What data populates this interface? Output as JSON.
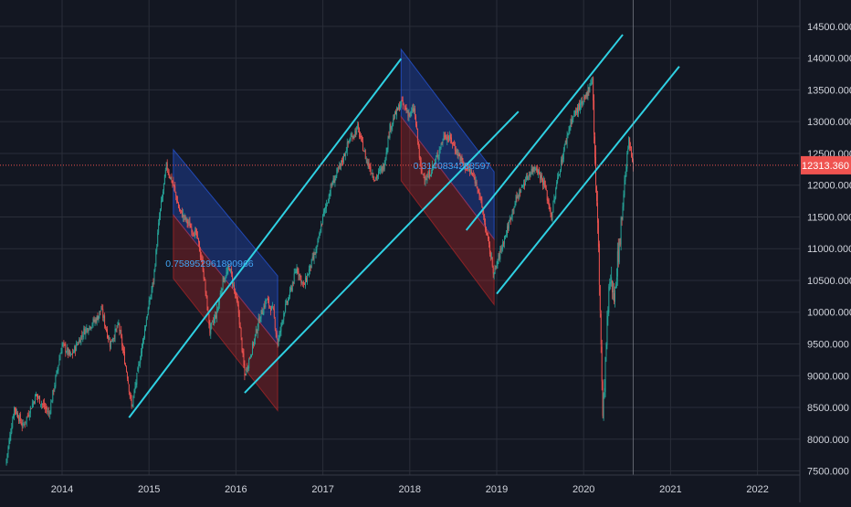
{
  "chart_data": {
    "type": "candlestick",
    "title": "",
    "xlabel": "",
    "ylabel": "",
    "ylim": [
      7450,
      14750
    ],
    "xlim": [
      2013.35,
      2022.6
    ],
    "y_ticks": [
      {
        "value": 7500,
        "label": "7500.000"
      },
      {
        "value": 8000,
        "label": "8000.000"
      },
      {
        "value": 8500,
        "label": "8500.000"
      },
      {
        "value": 9000,
        "label": "9000.000"
      },
      {
        "value": 9500,
        "label": "9500.000"
      },
      {
        "value": 10000,
        "label": "10000.000"
      },
      {
        "value": 10500,
        "label": "10500.000"
      },
      {
        "value": 11000,
        "label": "11000.000"
      },
      {
        "value": 11500,
        "label": "11500.000"
      },
      {
        "value": 12000,
        "label": "12000.000"
      },
      {
        "value": 12500,
        "label": "12500.000"
      },
      {
        "value": 13000,
        "label": "13000.000"
      },
      {
        "value": 13500,
        "label": "13500.000"
      },
      {
        "value": 14000,
        "label": "14000.000"
      },
      {
        "value": 14500,
        "label": "14500.000"
      }
    ],
    "x_ticks": [
      {
        "value": 2014,
        "label": "2014"
      },
      {
        "value": 2015,
        "label": "2015"
      },
      {
        "value": 2016,
        "label": "2016"
      },
      {
        "value": 2017,
        "label": "2017"
      },
      {
        "value": 2018,
        "label": "2018"
      },
      {
        "value": 2019,
        "label": "2019"
      },
      {
        "value": 2020,
        "label": "2020"
      },
      {
        "value": 2021,
        "label": "2021"
      },
      {
        "value": 2022,
        "label": "2022"
      }
    ],
    "current_price": {
      "value": 12313.36,
      "label": "12313.360"
    },
    "crosshair_x": 2020.57,
    "price_path": [
      [
        2013.35,
        7600
      ],
      [
        2013.45,
        8500
      ],
      [
        2013.55,
        8200
      ],
      [
        2013.7,
        8700
      ],
      [
        2013.85,
        8400
      ],
      [
        2014.0,
        9500
      ],
      [
        2014.1,
        9300
      ],
      [
        2014.25,
        9700
      ],
      [
        2014.4,
        9900
      ],
      [
        2014.45,
        10050
      ],
      [
        2014.55,
        9500
      ],
      [
        2014.65,
        9800
      ],
      [
        2014.75,
        9000
      ],
      [
        2014.8,
        8500
      ],
      [
        2014.9,
        9300
      ],
      [
        2014.97,
        9900
      ],
      [
        2015.05,
        10500
      ],
      [
        2015.12,
        11500
      ],
      [
        2015.2,
        12300
      ],
      [
        2015.28,
        12000
      ],
      [
        2015.35,
        11600
      ],
      [
        2015.45,
        11400
      ],
      [
        2015.55,
        11200
      ],
      [
        2015.62,
        10700
      ],
      [
        2015.7,
        9700
      ],
      [
        2015.78,
        10000
      ],
      [
        2015.85,
        10500
      ],
      [
        2015.93,
        10700
      ],
      [
        2016.03,
        10000
      ],
      [
        2016.1,
        9000
      ],
      [
        2016.18,
        9400
      ],
      [
        2016.27,
        9900
      ],
      [
        2016.35,
        10200
      ],
      [
        2016.43,
        10000
      ],
      [
        2016.48,
        9500
      ],
      [
        2016.55,
        10000
      ],
      [
        2016.6,
        10200
      ],
      [
        2016.7,
        10700
      ],
      [
        2016.78,
        10400
      ],
      [
        2016.85,
        10700
      ],
      [
        2016.93,
        11000
      ],
      [
        2017.0,
        11500
      ],
      [
        2017.1,
        12000
      ],
      [
        2017.2,
        12300
      ],
      [
        2017.3,
        12700
      ],
      [
        2017.4,
        12900
      ],
      [
        2017.5,
        12400
      ],
      [
        2017.6,
        12100
      ],
      [
        2017.7,
        12300
      ],
      [
        2017.77,
        12900
      ],
      [
        2017.83,
        13100
      ],
      [
        2017.9,
        13300
      ],
      [
        2018.0,
        13100
      ],
      [
        2018.05,
        13200
      ],
      [
        2018.13,
        12200
      ],
      [
        2018.2,
        12100
      ],
      [
        2018.3,
        12400
      ],
      [
        2018.4,
        12800
      ],
      [
        2018.48,
        12700
      ],
      [
        2018.55,
        12500
      ],
      [
        2018.63,
        12300
      ],
      [
        2018.7,
        12200
      ],
      [
        2018.78,
        12000
      ],
      [
        2018.85,
        11500
      ],
      [
        2018.9,
        11100
      ],
      [
        2018.97,
        10600
      ],
      [
        2019.05,
        11000
      ],
      [
        2019.12,
        11300
      ],
      [
        2019.2,
        11700
      ],
      [
        2019.3,
        12000
      ],
      [
        2019.38,
        12200
      ],
      [
        2019.45,
        12300
      ],
      [
        2019.55,
        12000
      ],
      [
        2019.63,
        11500
      ],
      [
        2019.7,
        12100
      ],
      [
        2019.78,
        12600
      ],
      [
        2019.85,
        13000
      ],
      [
        2019.93,
        13200
      ],
      [
        2020.0,
        13300
      ],
      [
        2020.05,
        13500
      ],
      [
        2020.1,
        13700
      ],
      [
        2020.14,
        12000
      ],
      [
        2020.17,
        11000
      ],
      [
        2020.2,
        9500
      ],
      [
        2020.22,
        8300
      ],
      [
        2020.27,
        9800
      ],
      [
        2020.3,
        10500
      ],
      [
        2020.35,
        10300
      ],
      [
        2020.42,
        11200
      ],
      [
        2020.48,
        12200
      ],
      [
        2020.52,
        12700
      ],
      [
        2020.57,
        12313
      ]
    ],
    "annotations": [
      {
        "text": "0.758952961890966",
        "x": 2015.19,
        "y": 10770
      },
      {
        "text": "0.3140834288597",
        "x": 2018.04,
        "y": 12314
      }
    ],
    "trendlines": [
      {
        "from": [
          2014.77,
          8340
        ],
        "to": [
          2017.9,
          13990
        ],
        "color": "#2fd1e3"
      },
      {
        "from": [
          2016.1,
          8730
        ],
        "to": [
          2019.25,
          13160
        ],
        "color": "#2fd1e3"
      },
      {
        "from": [
          2019.0,
          10290
        ],
        "to": [
          2021.1,
          13870
        ],
        "color": "#2fd1e3"
      },
      {
        "from": [
          2018.65,
          11290
        ],
        "to": [
          2020.45,
          14370
        ],
        "color": "#2fd1e3"
      }
    ],
    "channels": [
      {
        "top_left": [
          2015.28,
          12560
        ],
        "top_right": [
          2016.48,
          10570
        ],
        "mid_left": [
          2015.28,
          11530
        ],
        "mid_right": [
          2016.48,
          9490
        ],
        "bot_left": [
          2015.28,
          10530
        ],
        "bot_right": [
          2016.48,
          8450
        ]
      },
      {
        "top_left": [
          2017.9,
          14140
        ],
        "top_right": [
          2018.97,
          12210
        ],
        "mid_left": [
          2017.9,
          13080
        ],
        "mid_right": [
          2018.97,
          11150
        ],
        "bot_left": [
          2017.9,
          12070
        ],
        "bot_right": [
          2018.97,
          10120
        ]
      }
    ]
  },
  "colors": {
    "background": "#131722",
    "grid": "#2a2e39",
    "axis_text": "#d1d4dc",
    "up": "#26a69a",
    "down": "#ef5350",
    "trendline": "#2fd1e3",
    "channel_upper": "#2962ff",
    "channel_lower": "#c62828",
    "annotation": "#42a5f5",
    "price_label_bg": "#ef5350",
    "price_line": "#ef5350"
  }
}
